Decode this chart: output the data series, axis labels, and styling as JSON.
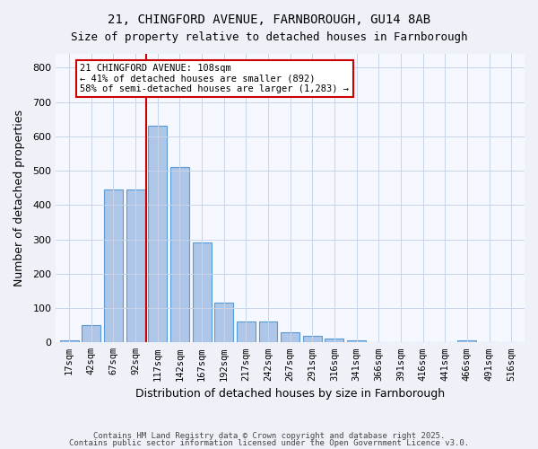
{
  "title1": "21, CHINGFORD AVENUE, FARNBOROUGH, GU14 8AB",
  "title2": "Size of property relative to detached houses in Farnborough",
  "xlabel": "Distribution of detached houses by size in Farnborough",
  "ylabel": "Number of detached properties",
  "bar_categories": [
    "17sqm",
    "42sqm",
    "67sqm",
    "92sqm",
    "117sqm",
    "142sqm",
    "167sqm",
    "192sqm",
    "217sqm",
    "242sqm",
    "267sqm",
    "291sqm",
    "316sqm",
    "341sqm",
    "366sqm",
    "391sqm",
    "416sqm",
    "441sqm",
    "466sqm",
    "491sqm",
    "516sqm"
  ],
  "bar_values": [
    5,
    50,
    445,
    445,
    630,
    510,
    290,
    115,
    60,
    60,
    30,
    20,
    10,
    5,
    0,
    0,
    0,
    0,
    5,
    0,
    0
  ],
  "bar_color": "#aec6e8",
  "bar_edge_color": "#5b9bd5",
  "vline_x": 3.5,
  "vline_color": "#cc0000",
  "annotation_text": "21 CHINGFORD AVENUE: 108sqm\n← 41% of detached houses are smaller (892)\n58% of semi-detached houses are larger (1,283) →",
  "annotation_box_color": "#ffffff",
  "annotation_box_edge_color": "#cc0000",
  "ylim": [
    0,
    840
  ],
  "yticks": [
    0,
    100,
    200,
    300,
    400,
    500,
    600,
    700,
    800
  ],
  "footer1": "Contains HM Land Registry data © Crown copyright and database right 2025.",
  "footer2": "Contains public sector information licensed under the Open Government Licence v3.0.",
  "bg_color": "#eef2f8",
  "plot_bg_color": "#f5f8ff"
}
